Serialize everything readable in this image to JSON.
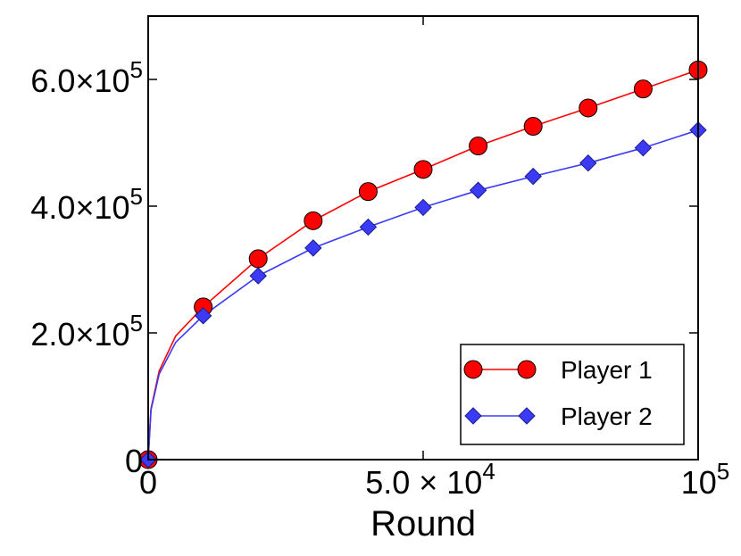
{
  "chart_data": {
    "type": "line",
    "xlabel": "Round",
    "ylabel": "",
    "xlim": [
      0,
      100000
    ],
    "ylim": [
      0,
      700000
    ],
    "x_ticks": [
      {
        "value": 0,
        "label": "0"
      },
      {
        "value": 50000,
        "label": "5.0 × 10",
        "exp": "4"
      },
      {
        "value": 100000,
        "label": "10",
        "exp": "5"
      }
    ],
    "y_ticks": [
      {
        "value": 0,
        "label": "0"
      },
      {
        "value": 200000,
        "label": "2.0×10",
        "exp": "5"
      },
      {
        "value": 400000,
        "label": "4.0×10",
        "exp": "5"
      },
      {
        "value": 600000,
        "label": "6.0×10",
        "exp": "5"
      }
    ],
    "legend_position": "lower-right",
    "series": [
      {
        "name": "Player 1",
        "color": "#ff0000",
        "marker": "circle",
        "x": [
          0,
          500,
          2000,
          5000,
          10000,
          20000,
          30000,
          40000,
          50000,
          60000,
          70000,
          80000,
          90000,
          100000
        ],
        "y": [
          0,
          80000,
          140000,
          195000,
          241000,
          317000,
          377000,
          423000,
          458000,
          495000,
          526000,
          555000,
          585000,
          615000
        ],
        "marker_x": [
          0,
          10000,
          20000,
          30000,
          40000,
          50000,
          60000,
          70000,
          80000,
          90000,
          100000
        ]
      },
      {
        "name": "Player 2",
        "color": "#3b3bf5",
        "marker": "diamond",
        "x": [
          0,
          500,
          2000,
          5000,
          10000,
          20000,
          30000,
          40000,
          50000,
          60000,
          70000,
          80000,
          90000,
          100000
        ],
        "y": [
          0,
          78000,
          135000,
          185000,
          227000,
          290000,
          334000,
          367000,
          398000,
          425000,
          447000,
          468000,
          492000,
          520000
        ],
        "marker_x": [
          0,
          10000,
          20000,
          30000,
          40000,
          50000,
          60000,
          70000,
          80000,
          90000,
          100000
        ]
      }
    ]
  }
}
